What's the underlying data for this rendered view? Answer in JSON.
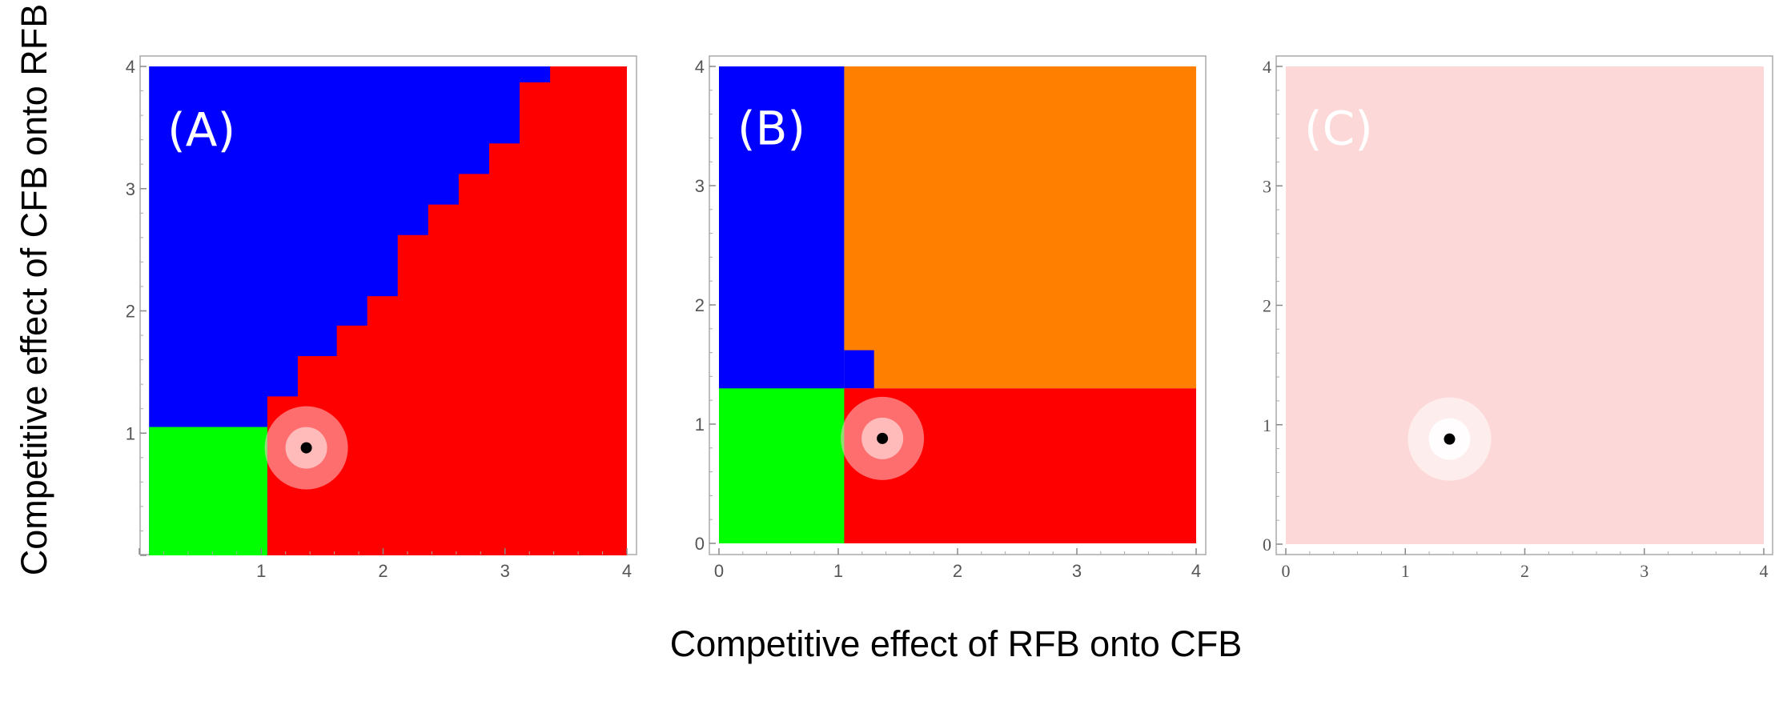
{
  "chart_data": [
    {
      "type": "heatmap",
      "panel_label": "(A)",
      "xlim": [
        0,
        4
      ],
      "ylim": [
        0,
        4
      ],
      "x_ticks": [
        "",
        "1",
        "2",
        "3",
        "4"
      ],
      "y_ticks": [
        "",
        "1",
        "2",
        "3",
        "4"
      ],
      "colors": {
        "blue": "#0000ff",
        "red": "#ff0000",
        "green": "#00ff00"
      },
      "regions": [
        {
          "color": "blue",
          "x0": 0.08,
          "x1": 4.0,
          "y0": 0.0,
          "y1": 4.0
        },
        {
          "color": "red",
          "boundary": [
            [
              1.05,
              0
            ],
            [
              1.05,
              1.3
            ],
            [
              1.3,
              1.3
            ],
            [
              1.3,
              1.63
            ],
            [
              1.62,
              1.63
            ],
            [
              1.62,
              1.88
            ],
            [
              1.87,
              1.88
            ],
            [
              1.87,
              2.12
            ],
            [
              2.12,
              2.12
            ],
            [
              2.12,
              2.62
            ],
            [
              2.37,
              2.62
            ],
            [
              2.37,
              2.87
            ],
            [
              2.62,
              2.87
            ],
            [
              2.62,
              3.12
            ],
            [
              2.87,
              3.12
            ],
            [
              2.87,
              3.37
            ],
            [
              3.12,
              3.37
            ],
            [
              3.12,
              3.87
            ],
            [
              3.37,
              3.87
            ],
            [
              3.37,
              4.0
            ],
            [
              4.0,
              4.0
            ],
            [
              4.0,
              0
            ]
          ]
        },
        {
          "color": "green",
          "x0": 0.08,
          "x1": 1.05,
          "y0": 0.0,
          "y1": 1.05
        }
      ],
      "marker": {
        "x": 1.37,
        "y": 0.88,
        "halo_color": "#ffc8c8"
      }
    },
    {
      "type": "heatmap",
      "panel_label": "(B)",
      "xlim": [
        0,
        4
      ],
      "ylim": [
        0,
        4
      ],
      "x_ticks": [
        "0",
        "1",
        "2",
        "3",
        "4"
      ],
      "y_ticks": [
        "0",
        "1",
        "2",
        "3",
        "4"
      ],
      "colors": {
        "blue": "#0000ff",
        "orange": "#ff8000",
        "red": "#ff0000",
        "green": "#00ff00"
      },
      "regions": [
        {
          "color": "blue",
          "x0": 0.0,
          "x1": 1.05,
          "y0": 0.0,
          "y1": 4.0
        },
        {
          "color": "orange",
          "x0": 1.05,
          "x1": 4.0,
          "y0": 1.3,
          "y1": 4.0
        },
        {
          "color": "blue",
          "x0": 1.05,
          "x1": 1.3,
          "y0": 1.3,
          "y1": 1.62
        },
        {
          "color": "green",
          "x0": 0.0,
          "x1": 1.05,
          "y0": 0.0,
          "y1": 1.3
        },
        {
          "color": "red",
          "x0": 1.05,
          "x1": 4.0,
          "y0": 0.0,
          "y1": 1.3
        }
      ],
      "marker": {
        "x": 1.37,
        "y": 0.88,
        "halo_color": "#ffc8c8"
      }
    },
    {
      "type": "heatmap",
      "panel_label": "(C)",
      "xlim": [
        0,
        4
      ],
      "ylim": [
        0,
        4
      ],
      "x_ticks": [
        "0",
        "1",
        "2",
        "3",
        "4"
      ],
      "y_ticks": [
        "0",
        "1",
        "2",
        "3",
        "4"
      ],
      "colors": {
        "pink": "#fdd8d8"
      },
      "regions": [
        {
          "color": "pink",
          "x0": 0.0,
          "x1": 4.0,
          "y0": 0.0,
          "y1": 4.0
        }
      ],
      "marker": {
        "x": 1.37,
        "y": 0.88,
        "halo_color": "#ffffff"
      }
    }
  ],
  "xlabel": "Competitive effect of RFB onto CFB",
  "ylabel": "Competitive effect of CFB onto RFB"
}
